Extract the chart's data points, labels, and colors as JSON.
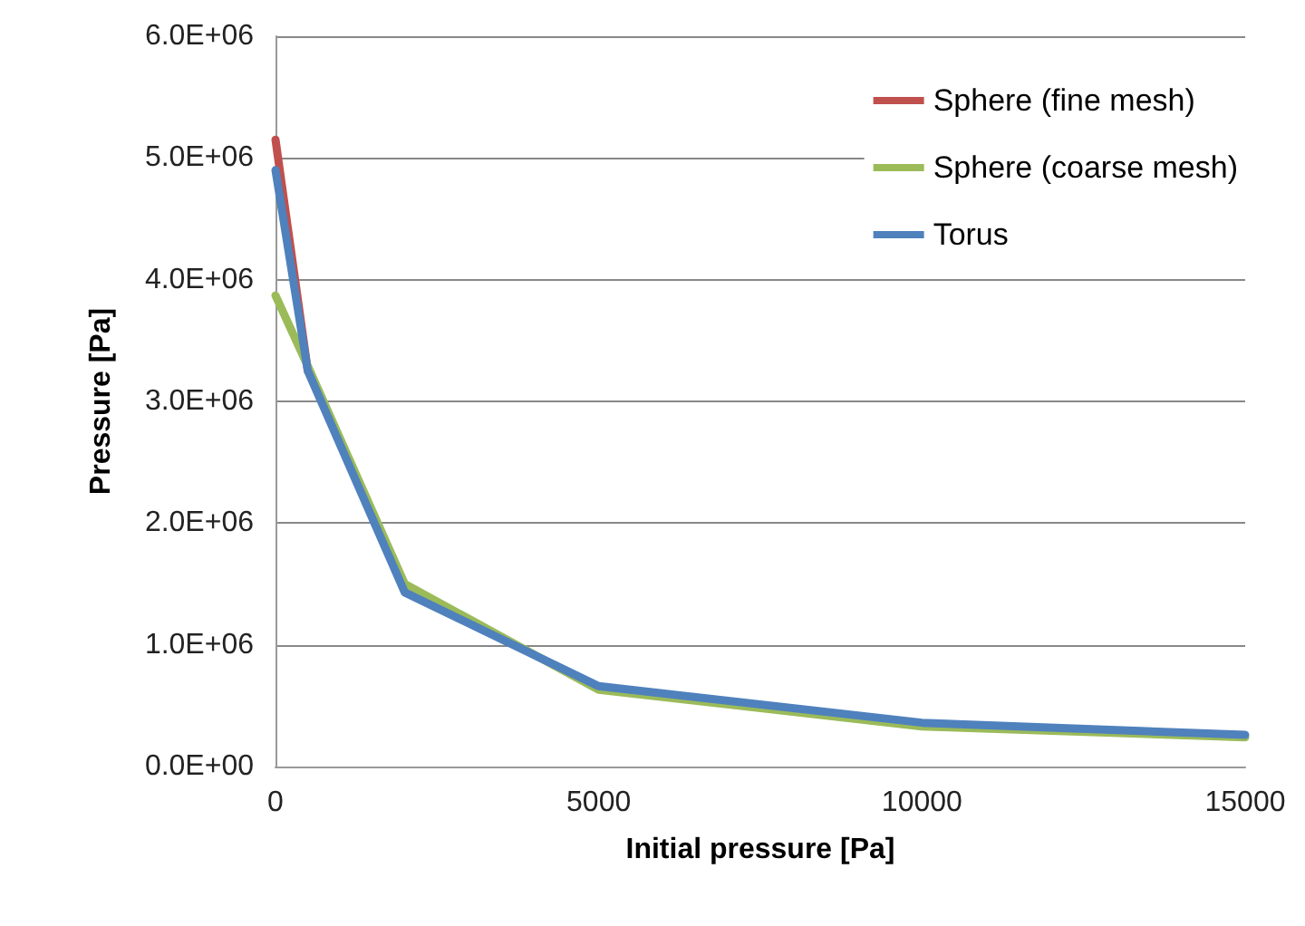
{
  "chart_data": {
    "type": "line",
    "xlabel": "Initial pressure [Pa]",
    "ylabel": "Pressure [Pa]",
    "x": [
      0,
      500,
      2000,
      5000,
      10000,
      15000
    ],
    "series": [
      {
        "name": "Sphere (fine mesh)",
        "color": "#c0504d",
        "values": [
          5150000,
          3250000,
          null,
          null,
          null,
          null
        ]
      },
      {
        "name": "Sphere (coarse mesh)",
        "color": "#9bbb59",
        "values": [
          3870000,
          3290000,
          1500000,
          630000,
          330000,
          240000
        ]
      },
      {
        "name": "Torus",
        "color": "#4f81bd",
        "values": [
          4900000,
          3250000,
          1430000,
          660000,
          360000,
          260000
        ]
      }
    ],
    "xlim": [
      0,
      15000
    ],
    "xticks": [
      0,
      5000,
      10000,
      15000
    ],
    "ylim": [
      0,
      6000000
    ],
    "yticks": [
      {
        "value": 0,
        "label": "0.0E+00"
      },
      {
        "value": 1000000,
        "label": "1.0E+06"
      },
      {
        "value": 2000000,
        "label": "2.0E+06"
      },
      {
        "value": 3000000,
        "label": "3.0E+06"
      },
      {
        "value": 4000000,
        "label": "4.0E+06"
      },
      {
        "value": 5000000,
        "label": "5.0E+06"
      },
      {
        "value": 6000000,
        "label": "6.0E+06"
      }
    ],
    "grid": "y",
    "legend": "top right",
    "marker": "none",
    "line_style": "solid"
  }
}
